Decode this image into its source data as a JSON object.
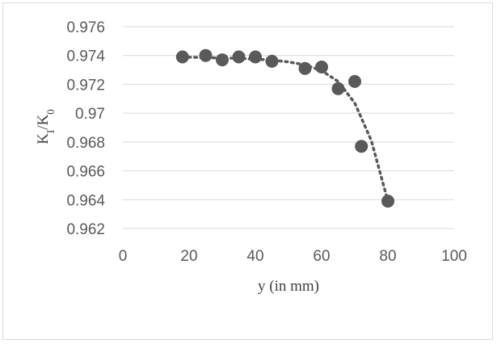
{
  "chart_data": {
    "type": "scatter",
    "title": "",
    "xlabel": "y (in mm)",
    "ylabel_main": "K",
    "ylabel_sub1": "I",
    "ylabel_mid": "/K",
    "ylabel_sub2": "0",
    "xlim": [
      0,
      100
    ],
    "ylim": [
      0.962,
      0.976
    ],
    "x_ticks": [
      "0",
      "20",
      "40",
      "60",
      "80",
      "100"
    ],
    "y_ticks": [
      "0.976",
      "0.974",
      "0.972",
      "0.97",
      "0.968",
      "0.966",
      "0.964",
      "0.962"
    ],
    "grid": "horizontal",
    "trendline": "dotted polynomial",
    "series": [
      {
        "x": [
          18,
          25,
          30,
          35,
          40,
          45,
          55,
          60,
          65,
          70,
          72,
          80
        ],
        "y": [
          0.9739,
          0.974,
          0.9737,
          0.9739,
          0.9739,
          0.9736,
          0.9731,
          0.9732,
          0.9717,
          0.9722,
          0.9677,
          0.9639
        ]
      }
    ],
    "trend": {
      "x": [
        18,
        25,
        30,
        35,
        40,
        45,
        50,
        55,
        60,
        65,
        70,
        75,
        80
      ],
      "y": [
        0.9739,
        0.97385,
        0.97383,
        0.9738,
        0.97375,
        0.97368,
        0.97355,
        0.97335,
        0.97295,
        0.9722,
        0.9707,
        0.9681,
        0.9639
      ]
    },
    "colors": {
      "marker": "#595959",
      "trend": "#595959",
      "grid": "#d9d9d9"
    }
  }
}
